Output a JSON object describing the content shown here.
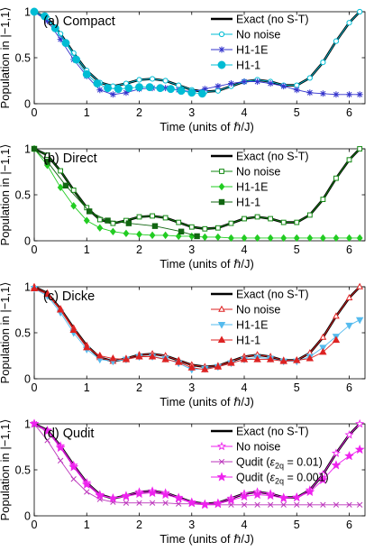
{
  "chart_data": [
    {
      "type": "line",
      "title": "(a) Compact",
      "xlabel": "Time (units of ℏ/J)",
      "ylabel": "Population in |−1,1⟩",
      "xlim": [
        0,
        6.3
      ],
      "ylim": [
        0,
        1
      ],
      "xticks": [
        "0",
        "1",
        "2",
        "3",
        "4",
        "5",
        "6"
      ],
      "yticks": [
        "0",
        "0.5",
        "1"
      ],
      "legend_position": "top-right",
      "series": [
        {
          "name": "Exact (no S-T)",
          "style": "exact",
          "color": "#000000",
          "x": [
            0,
            0.25,
            0.5,
            0.75,
            1.0,
            1.25,
            1.5,
            1.75,
            2.0,
            2.25,
            2.5,
            2.75,
            3.0,
            3.25,
            3.5,
            3.75,
            4.0,
            4.25,
            4.5,
            4.75,
            5.0,
            5.25,
            5.5,
            5.75,
            6.0,
            6.2
          ],
          "y": [
            1.0,
            0.93,
            0.76,
            0.55,
            0.36,
            0.23,
            0.19,
            0.22,
            0.26,
            0.27,
            0.25,
            0.2,
            0.15,
            0.13,
            0.14,
            0.19,
            0.24,
            0.26,
            0.24,
            0.2,
            0.2,
            0.28,
            0.45,
            0.68,
            0.88,
            1.0
          ]
        },
        {
          "name": "No noise",
          "style": "open",
          "color": "#00bcd4",
          "marker": "circle-open",
          "x": [
            0,
            0.25,
            0.5,
            0.75,
            1.0,
            1.25,
            1.5,
            1.75,
            2.0,
            2.25,
            2.5,
            2.75,
            3.0,
            3.25,
            3.5,
            3.75,
            4.0,
            4.25,
            4.5,
            4.75,
            5.0,
            5.25,
            5.5,
            5.75,
            6.0,
            6.2
          ],
          "y": [
            1.0,
            0.93,
            0.76,
            0.55,
            0.36,
            0.23,
            0.19,
            0.22,
            0.26,
            0.27,
            0.25,
            0.2,
            0.15,
            0.13,
            0.14,
            0.19,
            0.24,
            0.26,
            0.24,
            0.2,
            0.2,
            0.28,
            0.45,
            0.68,
            0.88,
            1.0
          ]
        },
        {
          "name": "H1-1E",
          "style": "thin",
          "color": "#3333cc",
          "marker": "star",
          "x": [
            0,
            0.25,
            0.5,
            0.75,
            1.0,
            1.25,
            1.5,
            1.75,
            2.0,
            2.25,
            2.5,
            2.75,
            3.0,
            3.25,
            3.5,
            3.75,
            4.0,
            4.25,
            4.5,
            4.75,
            5.0,
            5.25,
            5.5,
            5.75,
            6.0,
            6.2
          ],
          "y": [
            1.0,
            0.9,
            0.7,
            0.48,
            0.3,
            0.15,
            0.1,
            0.12,
            0.16,
            0.17,
            0.17,
            0.15,
            0.13,
            0.16,
            0.19,
            0.22,
            0.24,
            0.24,
            0.22,
            0.19,
            0.15,
            0.12,
            0.11,
            0.1,
            0.1,
            0.1
          ]
        },
        {
          "name": "H1-1",
          "style": "thin",
          "color": "#00bcd4",
          "marker": "circle-filled",
          "x": [
            0,
            0.2,
            0.4,
            0.6,
            0.8,
            1.0,
            1.2,
            1.4,
            1.6,
            1.8,
            2.0,
            2.2,
            2.4,
            2.6,
            2.8,
            3.0,
            3.2
          ],
          "y": [
            1.0,
            0.95,
            0.82,
            0.66,
            0.48,
            0.32,
            0.22,
            0.17,
            0.16,
            0.17,
            0.18,
            0.18,
            0.17,
            0.16,
            0.14,
            0.12,
            0.11
          ]
        }
      ]
    },
    {
      "type": "line",
      "title": "(b) Direct",
      "xlabel": "Time (units of ℏ/J)",
      "ylabel": "Population in |−1,1⟩",
      "xlim": [
        0,
        6.3
      ],
      "ylim": [
        0,
        1
      ],
      "xticks": [
        "0",
        "1",
        "2",
        "3",
        "4",
        "5",
        "6"
      ],
      "yticks": [
        "0",
        "0.5",
        "1"
      ],
      "legend_position": "top-right",
      "series": [
        {
          "name": "Exact (no S-T)",
          "style": "exact",
          "color": "#000000",
          "x": [
            0,
            0.25,
            0.5,
            0.75,
            1.0,
            1.25,
            1.5,
            1.75,
            2.0,
            2.25,
            2.5,
            2.75,
            3.0,
            3.25,
            3.5,
            3.75,
            4.0,
            4.25,
            4.5,
            4.75,
            5.0,
            5.25,
            5.5,
            5.75,
            6.0,
            6.2
          ],
          "y": [
            1.0,
            0.93,
            0.76,
            0.55,
            0.36,
            0.23,
            0.19,
            0.22,
            0.26,
            0.27,
            0.25,
            0.2,
            0.15,
            0.13,
            0.14,
            0.19,
            0.24,
            0.26,
            0.24,
            0.2,
            0.2,
            0.28,
            0.45,
            0.68,
            0.88,
            1.0
          ]
        },
        {
          "name": "No noise",
          "style": "open",
          "color": "#118811",
          "marker": "square-open",
          "x": [
            0,
            0.25,
            0.5,
            0.75,
            1.0,
            1.25,
            1.5,
            1.75,
            2.0,
            2.25,
            2.5,
            2.75,
            3.0,
            3.25,
            3.5,
            3.75,
            4.0,
            4.25,
            4.5,
            4.75,
            5.0,
            5.25,
            5.5,
            5.75,
            6.0,
            6.2
          ],
          "y": [
            1.0,
            0.93,
            0.76,
            0.55,
            0.36,
            0.23,
            0.19,
            0.22,
            0.26,
            0.27,
            0.25,
            0.2,
            0.15,
            0.13,
            0.14,
            0.19,
            0.24,
            0.26,
            0.24,
            0.2,
            0.2,
            0.28,
            0.45,
            0.68,
            0.88,
            1.0
          ]
        },
        {
          "name": "H1-1E",
          "style": "thin",
          "color": "#22cc22",
          "marker": "diamond",
          "x": [
            0,
            0.25,
            0.5,
            0.75,
            1.0,
            1.25,
            1.5,
            1.75,
            2.0,
            2.25,
            2.5,
            2.75,
            3.0,
            3.25,
            3.5,
            3.75,
            4.0,
            4.25,
            4.5,
            4.75,
            5.0,
            5.25,
            5.5,
            5.75,
            6.0,
            6.2
          ],
          "y": [
            1.0,
            0.82,
            0.58,
            0.38,
            0.22,
            0.14,
            0.1,
            0.08,
            0.07,
            0.06,
            0.06,
            0.05,
            0.05,
            0.04,
            0.04,
            0.03,
            0.03,
            0.03,
            0.03,
            0.03,
            0.03,
            0.03,
            0.03,
            0.03,
            0.03,
            0.03
          ]
        },
        {
          "name": "H1-1",
          "style": "thin",
          "color": "#116611",
          "marker": "square-filled",
          "x": [
            0,
            0.25,
            0.6,
            1.05,
            1.4,
            1.8,
            2.3,
            2.8,
            3.1
          ],
          "y": [
            1.0,
            0.86,
            0.6,
            0.32,
            0.22,
            0.19,
            0.16,
            0.1,
            0.05
          ]
        }
      ]
    },
    {
      "type": "line",
      "title": "(c) Dicke",
      "xlabel": "Time (units of ℏ/J)",
      "ylabel": "Population in |−1,1⟩",
      "xlim": [
        0,
        6.3
      ],
      "ylim": [
        0,
        1
      ],
      "xticks": [
        "0",
        "1",
        "2",
        "3",
        "4",
        "5",
        "6"
      ],
      "yticks": [
        "0",
        "0.5",
        "1"
      ],
      "legend_position": "top-right",
      "series": [
        {
          "name": "Exact (no S-T)",
          "style": "exact",
          "color": "#000000",
          "x": [
            0,
            0.25,
            0.5,
            0.75,
            1.0,
            1.25,
            1.5,
            1.75,
            2.0,
            2.25,
            2.5,
            2.75,
            3.0,
            3.25,
            3.5,
            3.75,
            4.0,
            4.25,
            4.5,
            4.75,
            5.0,
            5.25,
            5.5,
            5.75,
            6.0,
            6.2
          ],
          "y": [
            1.0,
            0.93,
            0.76,
            0.55,
            0.36,
            0.23,
            0.19,
            0.22,
            0.26,
            0.27,
            0.25,
            0.2,
            0.15,
            0.13,
            0.14,
            0.19,
            0.24,
            0.26,
            0.24,
            0.2,
            0.2,
            0.28,
            0.45,
            0.68,
            0.88,
            1.0
          ]
        },
        {
          "name": "No noise",
          "style": "open",
          "color": "#dd2222",
          "marker": "triangle-open",
          "x": [
            0,
            0.25,
            0.5,
            0.75,
            1.0,
            1.25,
            1.5,
            1.75,
            2.0,
            2.25,
            2.5,
            2.75,
            3.0,
            3.25,
            3.5,
            3.75,
            4.0,
            4.25,
            4.5,
            4.75,
            5.0,
            5.25,
            5.5,
            5.75,
            6.0,
            6.2
          ],
          "y": [
            1.0,
            0.93,
            0.76,
            0.55,
            0.36,
            0.23,
            0.19,
            0.22,
            0.26,
            0.27,
            0.25,
            0.2,
            0.15,
            0.13,
            0.14,
            0.19,
            0.24,
            0.26,
            0.24,
            0.2,
            0.2,
            0.28,
            0.45,
            0.68,
            0.88,
            1.0
          ]
        },
        {
          "name": "H1-1E",
          "style": "thin",
          "color": "#55bbee",
          "marker": "triangle-down",
          "x": [
            0,
            0.25,
            0.5,
            0.75,
            1.0,
            1.25,
            1.5,
            1.75,
            2.0,
            2.25,
            2.5,
            2.75,
            3.0,
            3.25,
            3.5,
            3.75,
            4.0,
            4.25,
            4.5,
            4.75,
            5.0,
            5.25,
            5.5,
            5.75,
            6.0,
            6.2
          ],
          "y": [
            0.98,
            0.9,
            0.72,
            0.5,
            0.32,
            0.21,
            0.19,
            0.21,
            0.24,
            0.24,
            0.22,
            0.17,
            0.1,
            0.11,
            0.13,
            0.17,
            0.21,
            0.23,
            0.22,
            0.19,
            0.19,
            0.24,
            0.34,
            0.46,
            0.58,
            0.64
          ]
        },
        {
          "name": "H1-1",
          "style": "thin",
          "color": "#dd2222",
          "marker": "triangle-up",
          "x": [
            0,
            0.25,
            0.5,
            0.75,
            1.0,
            1.25,
            1.5,
            1.75,
            2.0,
            2.25,
            2.5,
            2.75,
            3.0,
            3.25,
            3.5,
            3.75,
            4.0,
            4.25,
            4.5,
            4.75,
            5.0,
            5.25,
            5.5,
            5.75
          ],
          "y": [
            0.98,
            0.92,
            0.75,
            0.53,
            0.34,
            0.25,
            0.22,
            0.21,
            0.24,
            0.24,
            0.21,
            0.18,
            0.12,
            0.1,
            0.13,
            0.17,
            0.21,
            0.21,
            0.21,
            0.19,
            0.2,
            0.22,
            0.29,
            0.42
          ]
        }
      ]
    },
    {
      "type": "line",
      "title": "(d) Qudit",
      "xlabel": "Time (units of ℏ/J)",
      "ylabel": "Population in |−1,1⟩",
      "xlim": [
        0,
        6.3
      ],
      "ylim": [
        0,
        1
      ],
      "xticks": [
        "0",
        "1",
        "2",
        "3",
        "4",
        "5",
        "6"
      ],
      "yticks": [
        "0",
        "0.5",
        "1"
      ],
      "legend_position": "top-right",
      "series": [
        {
          "name": "Exact (no S-T)",
          "style": "exact",
          "color": "#000000",
          "x": [
            0,
            0.25,
            0.5,
            0.75,
            1.0,
            1.25,
            1.5,
            1.75,
            2.0,
            2.25,
            2.5,
            2.75,
            3.0,
            3.25,
            3.5,
            3.75,
            4.0,
            4.25,
            4.5,
            4.75,
            5.0,
            5.25,
            5.5,
            5.75,
            6.0,
            6.2
          ],
          "y": [
            1.0,
            0.93,
            0.76,
            0.55,
            0.36,
            0.23,
            0.19,
            0.22,
            0.26,
            0.27,
            0.25,
            0.2,
            0.15,
            0.13,
            0.14,
            0.19,
            0.24,
            0.26,
            0.24,
            0.2,
            0.2,
            0.28,
            0.45,
            0.68,
            0.88,
            1.0
          ]
        },
        {
          "name": "No noise",
          "style": "open",
          "color": "#ee22ee",
          "marker": "star-open",
          "x": [
            0,
            0.25,
            0.5,
            0.75,
            1.0,
            1.25,
            1.5,
            1.75,
            2.0,
            2.25,
            2.5,
            2.75,
            3.0,
            3.25,
            3.5,
            3.75,
            4.0,
            4.25,
            4.5,
            4.75,
            5.0,
            5.25,
            5.5,
            5.75,
            6.0,
            6.2
          ],
          "y": [
            1.0,
            0.93,
            0.76,
            0.55,
            0.36,
            0.23,
            0.19,
            0.22,
            0.26,
            0.27,
            0.25,
            0.2,
            0.15,
            0.13,
            0.14,
            0.19,
            0.24,
            0.26,
            0.24,
            0.2,
            0.2,
            0.28,
            0.45,
            0.68,
            0.88,
            1.0
          ]
        },
        {
          "name": "Qudit (ε2q = 0.01)",
          "name_main": "Qudit (",
          "name_sym": "ε",
          "name_sub": "2q",
          "name_rest": " = 0.01)",
          "style": "thin",
          "color": "#bb33bb",
          "marker": "x",
          "x": [
            0,
            0.25,
            0.5,
            0.75,
            1.0,
            1.25,
            1.5,
            1.75,
            2.0,
            2.25,
            2.5,
            2.75,
            3.0,
            3.25,
            3.5,
            3.75,
            4.0,
            4.25,
            4.5,
            4.75,
            5.0,
            5.25,
            5.5,
            5.75,
            6.0,
            6.2
          ],
          "y": [
            1.0,
            0.82,
            0.6,
            0.4,
            0.26,
            0.18,
            0.15,
            0.14,
            0.14,
            0.14,
            0.14,
            0.13,
            0.13,
            0.12,
            0.12,
            0.12,
            0.12,
            0.12,
            0.12,
            0.12,
            0.12,
            0.12,
            0.12,
            0.12,
            0.12,
            0.12
          ]
        },
        {
          "name": "Qudit (ε2q = 0.001)",
          "name_main": "Qudit (",
          "name_sym": "ε",
          "name_sub": "2q",
          "name_rest": " = 0.001)",
          "style": "thin",
          "color": "#ee22ee",
          "marker": "star-filled",
          "x": [
            0,
            0.25,
            0.5,
            0.75,
            1.0,
            1.25,
            1.5,
            1.75,
            2.0,
            2.25,
            2.5,
            2.75,
            3.0,
            3.25,
            3.5,
            3.75,
            4.0,
            4.25,
            4.5,
            4.75,
            5.0,
            5.25,
            5.5,
            5.75,
            6.0,
            6.2
          ],
          "y": [
            1.0,
            0.92,
            0.74,
            0.53,
            0.34,
            0.22,
            0.19,
            0.21,
            0.24,
            0.25,
            0.23,
            0.19,
            0.14,
            0.12,
            0.13,
            0.17,
            0.21,
            0.23,
            0.22,
            0.19,
            0.2,
            0.26,
            0.39,
            0.55,
            0.65,
            0.72
          ]
        }
      ]
    }
  ]
}
